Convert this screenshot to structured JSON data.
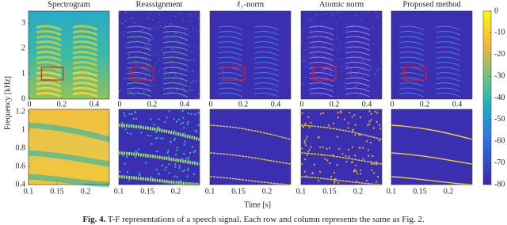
{
  "figure": {
    "panels": [
      "Spectrogram",
      "Reassignment",
      "ℓ₁-norm",
      "Atomic norm",
      "Proposed method"
    ],
    "top_x_ticks": [
      0,
      0.2,
      0.4
    ],
    "top_y_ticks": [
      0,
      1,
      2,
      3
    ],
    "bottom_x_ticks": [
      0.1,
      0.15,
      0.2
    ],
    "bottom_y_ticks": [
      0.4,
      0.6,
      0.8,
      1,
      1.2
    ],
    "x_label": "Time [s]",
    "y_label": "Frequency [kHz]",
    "colorbar_ticks": [
      0,
      -10,
      -20,
      -30,
      -40,
      -50,
      -60,
      -70,
      -80
    ]
  },
  "caption": {
    "label": "Fig. 4.",
    "text": "T-F representations of a speech signal. Each row and column represents the same as Fig. 2."
  }
}
